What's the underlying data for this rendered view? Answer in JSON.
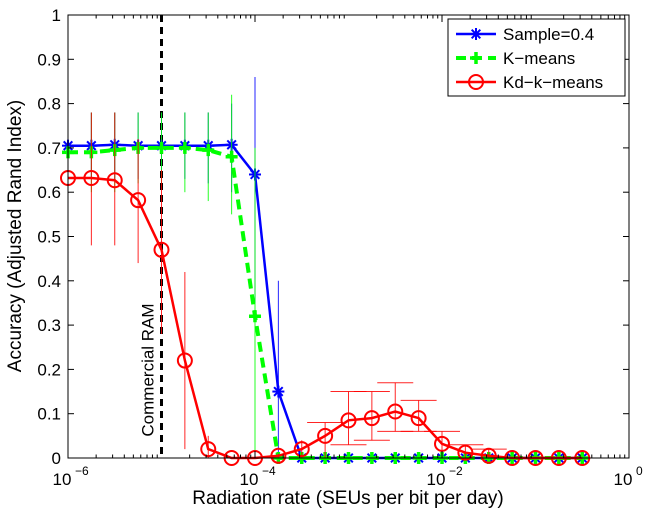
{
  "chart_data": {
    "type": "line",
    "title": "",
    "xlabel": "Radiation rate (SEUs per bit per day)",
    "ylabel": "Accuracy (Adjusted Rand Index)",
    "xscale": "log",
    "xlim": [
      1e-06,
      1
    ],
    "ylim": [
      0,
      1
    ],
    "x_ticks": [
      {
        "value": 1e-06,
        "base": "10",
        "exp": "−6"
      },
      {
        "value": 0.0001,
        "base": "10",
        "exp": "−4"
      },
      {
        "value": 0.01,
        "base": "10",
        "exp": "−2"
      },
      {
        "value": 1,
        "base": "10",
        "exp": "0"
      }
    ],
    "y_ticks": [
      "0",
      "0.1",
      "0.2",
      "0.3",
      "0.4",
      "0.5",
      "0.6",
      "0.7",
      "0.8",
      "0.9",
      "1"
    ],
    "grid": false,
    "legend_position": "top-right",
    "annotation": {
      "text": "Commercial RAM",
      "x": 1e-05
    },
    "x": [
      1e-06,
      1.778e-06,
      3.162e-06,
      5.623e-06,
      1e-05,
      1.778e-05,
      3.162e-05,
      5.623e-05,
      0.0001,
      0.0001778,
      0.0003162,
      0.0005623,
      0.001,
      0.001778,
      0.003162,
      0.005623,
      0.01,
      0.01778,
      0.03162,
      0.05623,
      0.1,
      0.1778,
      0.3162
    ],
    "series": [
      {
        "name": "Sample=0.4",
        "color": "#0000ff",
        "marker": "asterisk",
        "linestyle": "solid",
        "values": [
          0.705,
          0.705,
          0.707,
          0.705,
          0.705,
          0.705,
          0.705,
          0.707,
          0.64,
          0.15,
          0.0,
          0.0,
          0.0,
          0.0,
          0.0,
          0.0,
          0.0,
          0.0,
          0.0,
          0.0,
          0.0,
          0.0,
          0.0
        ],
        "err_low": [
          0.63,
          0.63,
          0.63,
          0.63,
          0.63,
          0.63,
          0.62,
          0.6,
          0.35,
          0.0,
          0,
          0,
          0,
          0,
          0,
          0,
          0,
          0,
          0,
          0,
          0,
          0,
          0
        ],
        "err_high": [
          0.78,
          0.78,
          0.78,
          0.78,
          0.78,
          0.78,
          0.78,
          0.8,
          0.86,
          0.4,
          0,
          0,
          0,
          0,
          0,
          0,
          0,
          0,
          0,
          0,
          0,
          0,
          0
        ]
      },
      {
        "name": "K−means",
        "color": "#00ff00",
        "marker": "plus",
        "linestyle": "dashed",
        "values": [
          0.69,
          0.69,
          0.695,
          0.7,
          0.7,
          0.7,
          0.695,
          0.68,
          0.32,
          0.0,
          0.0,
          0.0,
          0.0,
          0.0,
          0.0,
          0.0,
          0.0,
          0.0,
          0.0,
          0.0,
          0.0,
          0.0,
          0.0
        ],
        "err_low": [
          0.6,
          0.6,
          0.6,
          0.62,
          0.62,
          0.6,
          0.58,
          0.55,
          0.0,
          0.0,
          0,
          0,
          0,
          0,
          0,
          0,
          0,
          0,
          0,
          0,
          0,
          0,
          0
        ],
        "err_high": [
          0.78,
          0.78,
          0.78,
          0.78,
          0.78,
          0.78,
          0.78,
          0.82,
          0.7,
          0.0,
          0,
          0,
          0,
          0,
          0,
          0,
          0,
          0,
          0,
          0,
          0,
          0,
          0
        ]
      },
      {
        "name": "Kd−k−means",
        "color": "#ff0000",
        "marker": "circle",
        "linestyle": "solid",
        "values": [
          0.632,
          0.632,
          0.627,
          0.582,
          0.47,
          0.22,
          0.02,
          0.0,
          0.0,
          0.005,
          0.02,
          0.05,
          0.085,
          0.09,
          0.105,
          0.09,
          0.032,
          0.012,
          0.005,
          0.0,
          0.0,
          0.0,
          0.0
        ],
        "err_low": [
          0.48,
          0.48,
          0.48,
          0.44,
          0.28,
          0.02,
          0.0,
          0,
          0,
          0,
          0,
          0,
          0.03,
          0.04,
          0.06,
          0.06,
          0.0,
          0,
          0,
          0,
          0,
          0,
          0
        ],
        "err_high": [
          0.78,
          0.78,
          0.78,
          0.72,
          0.65,
          0.42,
          0.05,
          0,
          0,
          0.01,
          0.04,
          0.08,
          0.15,
          0.15,
          0.17,
          0.13,
          0.06,
          0.03,
          0.02,
          0,
          0,
          0,
          0
        ]
      }
    ]
  }
}
